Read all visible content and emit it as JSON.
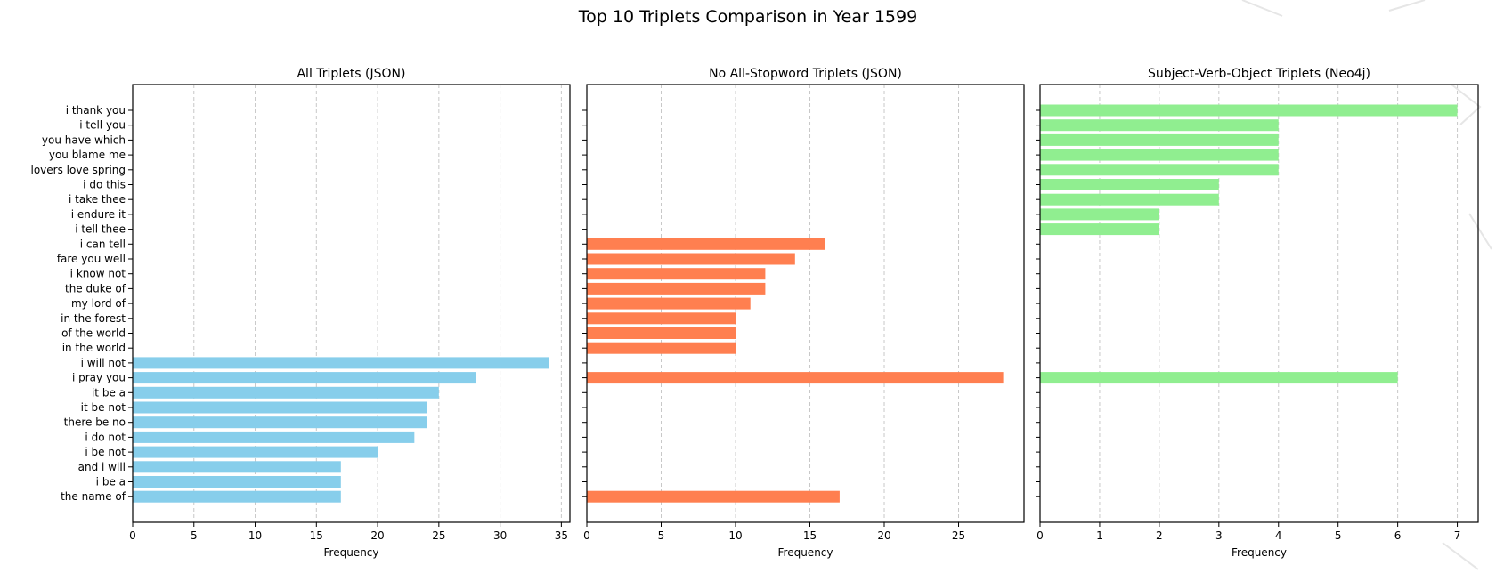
{
  "chart_data": {
    "type": "bar",
    "orientation": "horizontal",
    "title": "Top 10 Triplets Comparison in Year 1599",
    "categories": [
      "i thank you",
      "i tell you",
      "you have which",
      "you blame me",
      "lovers love spring",
      "i do this",
      "i take thee",
      "i endure it",
      "i tell thee",
      "i can tell",
      "fare you well",
      "i know not",
      "the duke of",
      "my lord of",
      "in the forest",
      "of the world",
      "in the world",
      "i will not",
      "i pray you",
      "it be a",
      "it be not",
      "there be no",
      "i do not",
      "i be not",
      "and i will",
      "i be a",
      "the name of"
    ],
    "panels": [
      {
        "title": "All Triplets (JSON)",
        "xlabel": "Frequency",
        "color": "#87ceeb",
        "xlim": [
          0,
          35.7
        ],
        "xticks": [
          0,
          5,
          10,
          15,
          20,
          25,
          30,
          35
        ],
        "grid": true,
        "values": [
          null,
          null,
          null,
          null,
          null,
          null,
          null,
          null,
          null,
          null,
          null,
          null,
          null,
          null,
          null,
          null,
          null,
          34,
          28,
          25,
          24,
          24,
          23,
          20,
          17,
          17,
          17
        ]
      },
      {
        "title": "No All-Stopword Triplets (JSON)",
        "xlabel": "Frequency",
        "color": "#ff7f50",
        "xlim": [
          0,
          29.4
        ],
        "xticks": [
          0,
          5,
          10,
          15,
          20,
          25
        ],
        "grid": true,
        "values": [
          null,
          null,
          null,
          null,
          null,
          null,
          null,
          null,
          null,
          16,
          14,
          12,
          12,
          11,
          10,
          10,
          10,
          null,
          28,
          null,
          null,
          null,
          null,
          null,
          null,
          null,
          17
        ]
      },
      {
        "title": "Subject-Verb-Object Triplets (Neo4j)",
        "xlabel": "Frequency",
        "color": "#90ee90",
        "xlim": [
          0,
          7.35
        ],
        "xticks": [
          0,
          1,
          2,
          3,
          4,
          5,
          6,
          7
        ],
        "grid": true,
        "values": [
          7,
          4,
          4,
          4,
          4,
          3,
          3,
          2,
          2,
          null,
          null,
          null,
          null,
          null,
          null,
          null,
          null,
          null,
          6,
          null,
          null,
          null,
          null,
          null,
          null,
          null,
          null
        ]
      }
    ]
  }
}
